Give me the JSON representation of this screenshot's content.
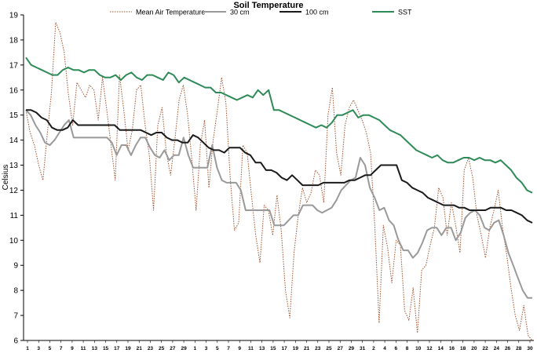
{
  "chart_data": {
    "type": "line",
    "title": "Soil Temperature",
    "ylabel": "Celsius",
    "xlabel": "",
    "ylim": [
      6,
      19
    ],
    "yticks": [
      6,
      7,
      8,
      9,
      10,
      11,
      12,
      13,
      14,
      15,
      16,
      17,
      18,
      19
    ],
    "grid": false,
    "legend_position": "top",
    "x_tick_labels": [
      "1",
      "3",
      "5",
      "7",
      "9",
      "11",
      "13",
      "15",
      "17",
      "19",
      "21",
      "23",
      "25",
      "27",
      "29",
      "1",
      "3",
      "5",
      "7",
      "9",
      "11",
      "13",
      "15",
      "17",
      "19",
      "21",
      "23",
      "25",
      "27",
      "29",
      "31",
      "2",
      "4",
      "6",
      "8",
      "10",
      "12",
      "14",
      "16",
      "18",
      "20",
      "22",
      "24",
      "26",
      "28",
      "30"
    ],
    "series": [
      {
        "name": "Mean Air Temperature",
        "color": "#a0522d",
        "style": "dotted",
        "values": [
          15.2,
          14.3,
          13.8,
          13.0,
          12.4,
          14.2,
          15.9,
          18.7,
          18.3,
          17.5,
          15.8,
          14.6,
          16.3,
          16.0,
          15.7,
          16.2,
          16.0,
          14.8,
          16.5,
          15.2,
          13.8,
          12.4,
          16.6,
          15.2,
          13.6,
          14.4,
          16.0,
          16.2,
          14.6,
          13.4,
          11.2,
          14.6,
          15.3,
          13.5,
          12.6,
          14.0,
          15.6,
          16.2,
          15.0,
          13.2,
          11.2,
          13.8,
          14.8,
          12.1,
          14.0,
          15.2,
          16.5,
          15.5,
          12.5,
          10.4,
          10.7,
          13.8,
          13.5,
          11.8,
          10.2,
          9.1,
          11.4,
          11.2,
          10.2,
          11.8,
          10.4,
          8.0,
          6.9,
          9.5,
          11.0,
          12.1,
          11.5,
          11.9,
          12.8,
          12.6,
          11.5,
          15.0,
          16.1,
          13.5,
          12.6,
          14.6,
          15.3,
          15.6,
          15.2,
          14.8,
          14.3,
          13.5,
          10.5,
          6.7,
          10.6,
          9.7,
          8.3,
          10.0,
          9.8,
          7.2,
          6.8,
          8.1,
          6.3,
          8.8,
          9.0,
          9.8,
          10.5,
          12.1,
          11.7,
          10.2,
          11.5,
          10.6,
          9.5,
          12.8,
          13.3,
          12.5,
          11.0,
          10.2,
          9.3,
          10.5,
          11.2,
          12.0,
          10.5,
          9.4,
          8.1,
          7.0,
          6.4,
          7.4,
          6.2,
          6.0
        ]
      },
      {
        "name": "30 cm",
        "color": "#999999",
        "style": "solid",
        "values": [
          15.2,
          15.0,
          14.6,
          14.3,
          13.9,
          13.8,
          14.0,
          14.3,
          14.6,
          14.8,
          14.1,
          14.1,
          14.1,
          14.1,
          14.1,
          14.1,
          14.1,
          14.1,
          13.9,
          13.4,
          13.8,
          13.8,
          13.4,
          13.8,
          14.1,
          14.1,
          13.7,
          13.4,
          13.3,
          13.6,
          13.2,
          13.4,
          13.4,
          14.1,
          13.4,
          12.9,
          12.9,
          12.9,
          12.9,
          13.8,
          12.9,
          12.4,
          12.3,
          12.3,
          12.3,
          12.0,
          11.2,
          11.2,
          11.2,
          11.2,
          11.2,
          11.2,
          10.6,
          10.6,
          10.6,
          10.8,
          11.0,
          11.0,
          11.4,
          11.4,
          11.4,
          11.2,
          11.1,
          11.2,
          11.3,
          11.6,
          12.0,
          12.2,
          12.4,
          12.5,
          13.3,
          13.0,
          12.1,
          11.7,
          11.2,
          11.3,
          10.8,
          10.6,
          10.0,
          9.6,
          9.6,
          9.3,
          9.5,
          9.9,
          10.4,
          10.5,
          10.5,
          10.2,
          10.5,
          10.5,
          10.0,
          10.3,
          10.9,
          11.1,
          11.2,
          11.0,
          10.5,
          10.4,
          10.7,
          10.8,
          10.2,
          9.5,
          9.0,
          8.5,
          8.0,
          7.7,
          7.7
        ]
      },
      {
        "name": "100 cm",
        "color": "#1a1a1a",
        "style": "solid",
        "values": [
          15.2,
          15.2,
          15.1,
          14.9,
          14.8,
          14.5,
          14.4,
          14.4,
          14.5,
          14.8,
          14.6,
          14.6,
          14.6,
          14.6,
          14.6,
          14.6,
          14.6,
          14.6,
          14.4,
          14.4,
          14.4,
          14.4,
          14.4,
          14.3,
          14.2,
          14.3,
          14.3,
          14.1,
          14.0,
          14.0,
          13.9,
          13.9,
          14.2,
          14.1,
          13.9,
          13.7,
          13.6,
          13.6,
          13.5,
          13.7,
          13.7,
          13.7,
          13.5,
          13.4,
          13.1,
          13.1,
          12.8,
          12.8,
          12.7,
          12.5,
          12.4,
          12.6,
          12.4,
          12.2,
          12.2,
          12.2,
          12.2,
          12.3,
          12.3,
          12.3,
          12.3,
          12.3,
          12.4,
          12.4,
          12.5,
          12.6,
          12.6,
          12.8,
          13.0,
          13.0,
          13.0,
          13.0,
          12.4,
          12.3,
          12.1,
          12.0,
          11.9,
          11.7,
          11.6,
          11.5,
          11.4,
          11.4,
          11.4,
          11.3,
          11.3,
          11.2,
          11.2,
          11.2,
          11.2,
          11.3,
          11.3,
          11.3,
          11.2,
          11.2,
          11.1,
          11.0,
          10.8,
          10.7
        ]
      },
      {
        "name": "SST",
        "color": "#2e8b57",
        "style": "solid",
        "values": [
          17.3,
          17.0,
          16.9,
          16.8,
          16.7,
          16.6,
          16.6,
          16.8,
          16.9,
          16.8,
          16.8,
          16.7,
          16.8,
          16.8,
          16.6,
          16.5,
          16.5,
          16.6,
          16.4,
          16.6,
          16.7,
          16.5,
          16.4,
          16.6,
          16.6,
          16.5,
          16.4,
          16.7,
          16.6,
          16.3,
          16.5,
          16.4,
          16.3,
          16.2,
          16.1,
          16.1,
          15.9,
          15.9,
          15.8,
          15.7,
          15.6,
          15.7,
          15.8,
          15.7,
          16.0,
          15.8,
          16.0,
          15.2,
          15.2,
          15.1,
          15.0,
          14.9,
          14.8,
          14.7,
          14.6,
          14.5,
          14.6,
          14.5,
          14.7,
          15.0,
          15.0,
          15.1,
          15.2,
          14.9,
          15.0,
          15.0,
          14.9,
          14.8,
          14.6,
          14.4,
          14.3,
          14.2,
          14.0,
          13.8,
          13.6,
          13.5,
          13.4,
          13.3,
          13.4,
          13.2,
          13.1,
          13.1,
          13.2,
          13.3,
          13.3,
          13.2,
          13.3,
          13.2,
          13.2,
          13.1,
          13.2,
          13.0,
          12.8,
          12.5,
          12.3,
          12.0,
          11.9
        ]
      }
    ]
  }
}
